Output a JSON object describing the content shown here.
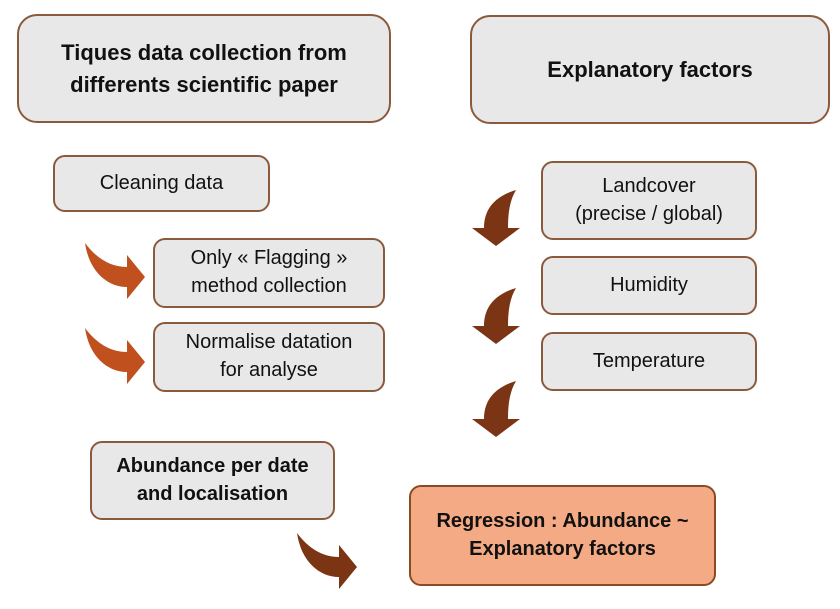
{
  "left_title": {
    "lines": [
      "Tiques data collection from",
      "differents scientific paper"
    ]
  },
  "right_title": "Explanatory factors",
  "cleaning": "Cleaning data",
  "flagging": {
    "lines": [
      "Only « Flagging »",
      "method collection"
    ]
  },
  "normalise": {
    "lines": [
      "Normalise datation",
      "for analyse"
    ]
  },
  "abundance": {
    "lines": [
      "Abundance per date",
      "and localisation"
    ]
  },
  "landcover": {
    "lines": [
      "Landcover",
      "(precise / global)"
    ]
  },
  "humidity": "Humidity",
  "temperature": "Temperature",
  "regression": {
    "lines": [
      "Regression : Abundance ~",
      "Explanatory factors"
    ]
  },
  "colors": {
    "box_fill": "#e8e8e8",
    "box_border": "#8b5a3c",
    "accent_fill": "#f4ab85",
    "arrow_orange": "#c0501e",
    "arrow_brown": "#7b3414"
  },
  "icons": [
    "curved-arrow-icon"
  ]
}
